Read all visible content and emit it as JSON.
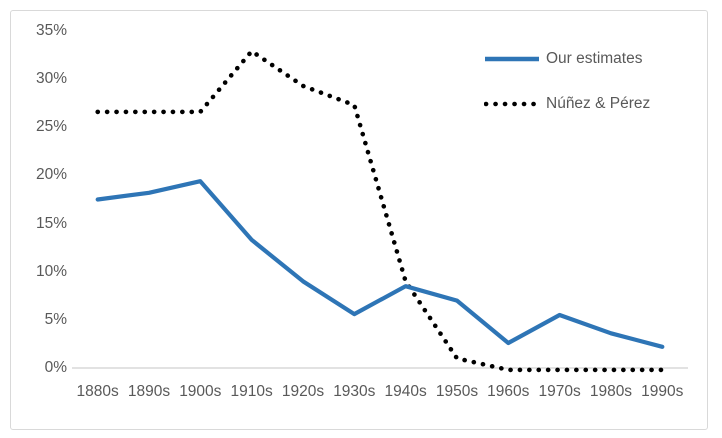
{
  "chart_data": {
    "type": "line",
    "title": "",
    "xlabel": "",
    "ylabel": "",
    "categories": [
      "1880s",
      "1890s",
      "1900s",
      "1910s",
      "1920s",
      "1930s",
      "1940s",
      "1950s",
      "1960s",
      "1970s",
      "1980s",
      "1990s"
    ],
    "series": [
      {
        "name": "Our estimates",
        "line_style": "solid",
        "color": "#2E75B6",
        "values": [
          17.5,
          18.2,
          19.4,
          13.3,
          9.0,
          5.6,
          8.5,
          7.0,
          2.6,
          5.5,
          3.6,
          2.2
        ]
      },
      {
        "name": "Núñez & Pérez",
        "line_style": "dotted",
        "color": "#000000",
        "values": [
          26.6,
          26.6,
          26.6,
          32.9,
          29.3,
          27.3,
          9.0,
          1.0,
          -0.2,
          -0.2,
          -0.2,
          -0.2
        ]
      }
    ],
    "y_axis": {
      "tick_labels": [
        "0%",
        "5%",
        "10%",
        "15%",
        "20%",
        "25%",
        "30%",
        "35%"
      ],
      "tick_values": [
        0,
        5,
        10,
        15,
        20,
        25,
        30,
        35
      ],
      "ylim": [
        0,
        35
      ]
    },
    "gridlines": "zero-baseline-only",
    "legend_position": "top-right-inside"
  },
  "colors": {
    "axis_label": "#595959",
    "axis_line": "#D9D9D9",
    "frame_border": "#D9D9D9",
    "background": "#FFFFFF"
  }
}
